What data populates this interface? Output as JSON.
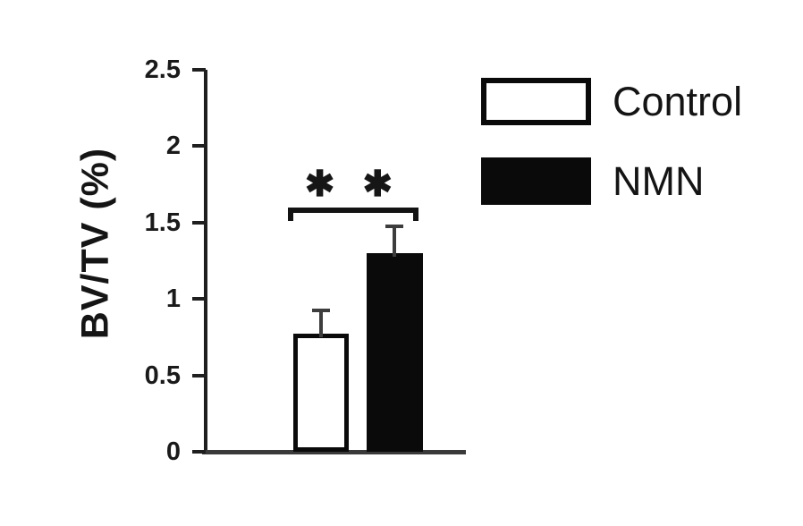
{
  "chart_data": {
    "type": "bar",
    "title": "",
    "ylabel": "BV/TV (%)",
    "xlabel": "",
    "ylim": [
      0,
      2.5
    ],
    "yticks": [
      0,
      0.5,
      1,
      1.5,
      2,
      2.5
    ],
    "ytick_labels": [
      "0",
      "0.5",
      "1",
      "1.5",
      "2",
      "2.5"
    ],
    "categories": [
      "Control",
      "NMN"
    ],
    "values": [
      0.77,
      1.3
    ],
    "errors_plus": [
      0.15,
      0.17
    ],
    "bar_fills": [
      "#ffffff",
      "#0a0a0a"
    ],
    "bar_border": "#0a0a0a",
    "significance": {
      "label": "✱ ✱",
      "meaning": "**",
      "between": [
        "Control",
        "NMN"
      ],
      "bracket_height_value": 1.6
    },
    "grid": false,
    "legend_position": "outside-right-top"
  },
  "legend": {
    "items": [
      {
        "label": "Control",
        "fill": "#ffffff",
        "border": "#0a0a0a"
      },
      {
        "label": "NMN",
        "fill": "#0a0a0a",
        "border": "#0a0a0a"
      }
    ]
  },
  "colors": {
    "background": "#ffffff",
    "axis": "#1f1f1f",
    "baseline": "#3a3a3a",
    "text": "#141414"
  }
}
